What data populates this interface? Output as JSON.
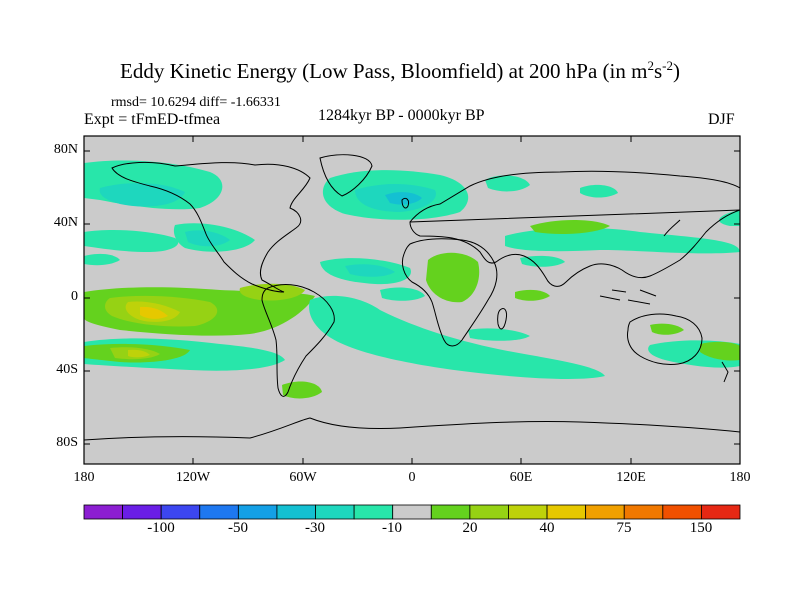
{
  "header": {
    "title_main": "Eddy Kinetic Energy (Low Pass, Bloomfield) at 200 hPa (in m",
    "title_sup1": "2",
    "title_mid": "s",
    "title_sup2": "-2",
    "title_end": ")",
    "stats": "rmsd= 10.6294 diff= -1.66331",
    "experiment": "Expt = tFmED-tfmea",
    "period": "1284kyr BP - 0000kyr BP",
    "season": "DJF"
  },
  "map": {
    "lat_ticks": [
      "80N",
      "40N",
      "0",
      "40S",
      "80S"
    ],
    "lon_ticks": [
      "180",
      "120W",
      "60W",
      "0",
      "60E",
      "120E",
      "180"
    ],
    "background_color": "#cbcbcb",
    "coast_color": "#000000"
  },
  "colorbar": {
    "colors": [
      "#8c1ed2",
      "#6a1ee6",
      "#3c46f0",
      "#1e78f0",
      "#14a0e6",
      "#14c0d2",
      "#1ed7be",
      "#28e6aa",
      "#cbcbcb",
      "#64d21e",
      "#96d214",
      "#bed20a",
      "#e6c800",
      "#f0a000",
      "#f07800",
      "#f05000",
      "#e62814"
    ],
    "labels": [
      "-100",
      "-50",
      "-30",
      "-10",
      "20",
      "40",
      "75",
      "150"
    ]
  },
  "palette": {
    "cyan": "#28e6aa",
    "light_blue": "#1ed7be",
    "sky_blue": "#14c0d2",
    "green": "#64d21e",
    "yellow_green": "#96d214",
    "yellow": "#bed20a",
    "orange": "#e6c800"
  }
}
